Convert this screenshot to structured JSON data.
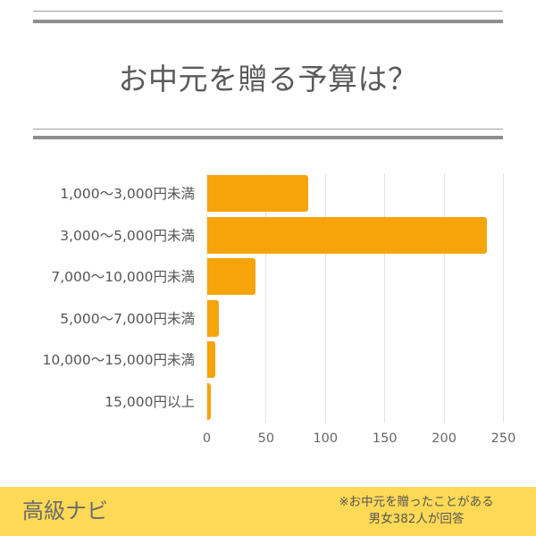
{
  "header": {
    "title": "お中元を贈る予算は？"
  },
  "colors": {
    "bar": "#F6A40A",
    "footer_bg": "#FDD955",
    "rule": "#8f8f8f",
    "text": "#555555"
  },
  "chart_data": {
    "type": "bar",
    "orientation": "horizontal",
    "title": "お中元を贈る予算は？",
    "xlabel": "",
    "ylabel": "",
    "categories": [
      "1,000〜3,000円未満",
      "3,000〜5,000円未満",
      "7,000〜10,000円未満",
      "5,000〜7,000円未満",
      "10,000〜15,000円未満",
      "15,000円以上"
    ],
    "values": [
      85,
      236,
      41,
      10,
      7,
      3
    ],
    "xlim": [
      0,
      250
    ],
    "x_ticks": [
      "0",
      "50",
      "100",
      "150",
      "200",
      "250"
    ],
    "grid": true,
    "legend": "none"
  },
  "footer": {
    "logo": "高級ナビ",
    "note_line1": "※お中元を贈ったことがある",
    "note_line2": "男女382人が回答"
  }
}
